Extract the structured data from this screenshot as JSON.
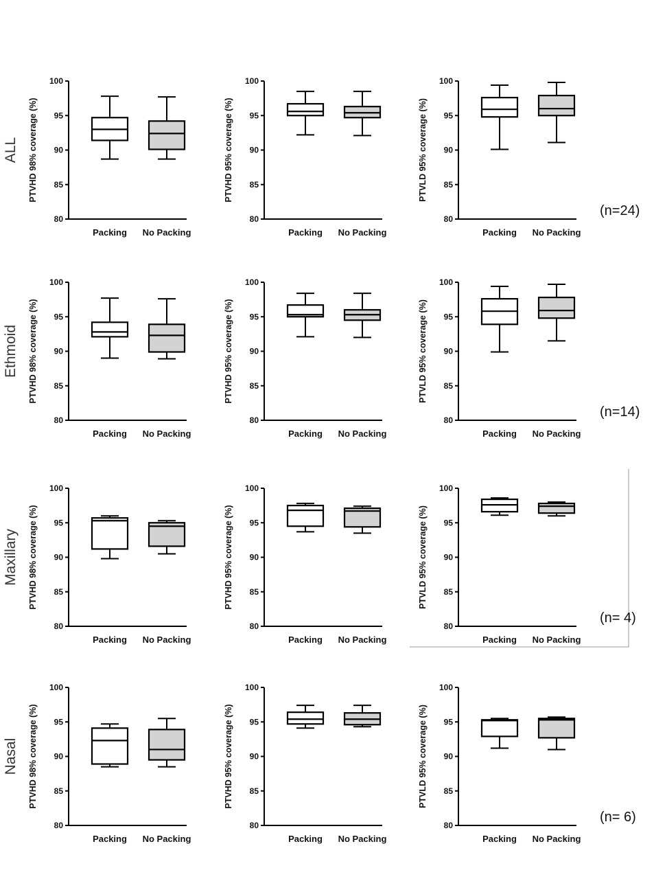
{
  "chart_data": {
    "type": "boxplot",
    "ylim": [
      80,
      100
    ],
    "yticks": [
      "80",
      "85",
      "90",
      "95",
      "100"
    ],
    "categories": [
      "Packing",
      "No Packing"
    ],
    "series_colors": {
      "Packing": "#ffffff",
      "No Packing": "#d3d3d3"
    },
    "ylabels": [
      "PTVHD 98% coverage (%)",
      "PTVHD 95% coverage (%)",
      "PTVLD 95% coverage (%)"
    ],
    "rows": [
      {
        "label": "ALL",
        "n": "(n=24)",
        "panels": [
          {
            "Packing": [
              88.7,
              91.4,
              93.0,
              94.7,
              97.8
            ],
            "No Packing": [
              88.7,
              90.1,
              92.4,
              94.2,
              97.7
            ]
          },
          {
            "Packing": [
              92.2,
              95.0,
              95.6,
              96.7,
              98.5
            ],
            "No Packing": [
              92.1,
              94.7,
              95.4,
              96.3,
              98.5
            ]
          },
          {
            "Packing": [
              90.1,
              94.8,
              95.9,
              97.6,
              99.4
            ],
            "No Packing": [
              91.1,
              95.0,
              96.0,
              97.9,
              99.8
            ]
          }
        ]
      },
      {
        "label": "Ethmoid",
        "n": "(n=14)",
        "panels": [
          {
            "Packing": [
              89.0,
              92.1,
              92.8,
              94.2,
              97.7
            ],
            "No Packing": [
              88.9,
              89.9,
              92.3,
              93.9,
              97.6
            ]
          },
          {
            "Packing": [
              92.1,
              95.0,
              95.3,
              96.7,
              98.4
            ],
            "No Packing": [
              92.0,
              94.5,
              95.3,
              96.0,
              98.4
            ]
          },
          {
            "Packing": [
              89.9,
              93.9,
              95.8,
              97.6,
              99.4
            ],
            "No Packing": [
              91.5,
              94.8,
              95.9,
              97.8,
              99.7
            ]
          }
        ]
      },
      {
        "label": "Maxillary",
        "n": "(n= 4)",
        "panels": [
          {
            "Packing": [
              89.8,
              91.2,
              95.3,
              95.7,
              96.0
            ],
            "No Packing": [
              90.5,
              91.6,
              94.5,
              95.0,
              95.3
            ]
          },
          {
            "Packing": [
              93.7,
              94.5,
              96.8,
              97.5,
              97.8
            ],
            "No Packing": [
              93.5,
              94.4,
              96.7,
              97.1,
              97.4
            ]
          },
          {
            "Packing": [
              96.1,
              96.6,
              97.6,
              98.4,
              98.6
            ],
            "No Packing": [
              96.0,
              96.4,
              97.4,
              97.8,
              98.0
            ]
          }
        ]
      },
      {
        "label": "Nasal",
        "n": "(n= 6)",
        "panels": [
          {
            "Packing": [
              88.5,
              88.9,
              92.3,
              94.1,
              94.7
            ],
            "No Packing": [
              88.5,
              89.5,
              91.0,
              93.9,
              95.5
            ]
          },
          {
            "Packing": [
              94.1,
              94.7,
              95.4,
              96.4,
              97.4
            ],
            "No Packing": [
              94.3,
              94.6,
              95.4,
              96.3,
              97.4
            ]
          },
          {
            "Packing": [
              91.2,
              92.9,
              95.2,
              95.3,
              95.5
            ],
            "No Packing": [
              91.0,
              92.7,
              95.3,
              95.5,
              95.7
            ]
          }
        ]
      }
    ]
  }
}
